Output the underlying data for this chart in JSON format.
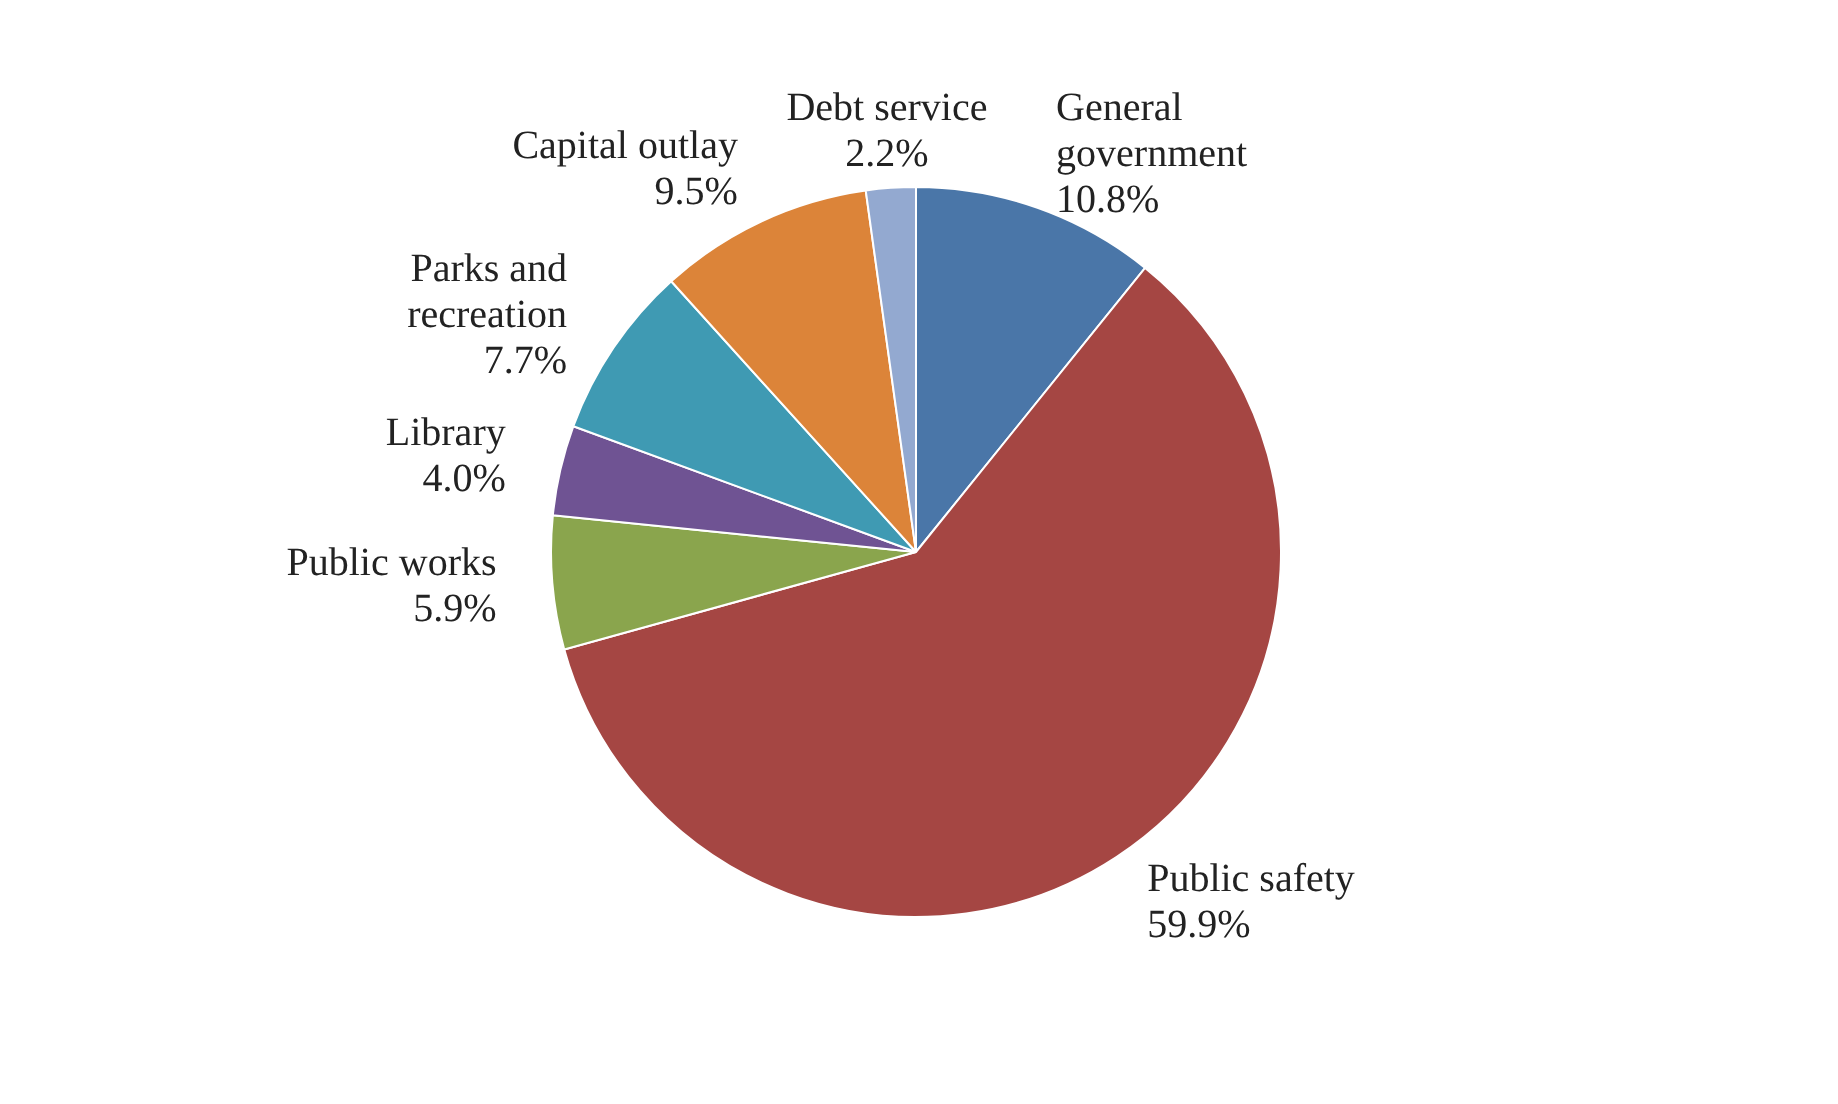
{
  "chart_data": {
    "type": "pie",
    "categories": [
      "General government",
      "Public safety",
      "Public works",
      "Library",
      "Parks and recreation",
      "Capital outlay",
      "Debt service"
    ],
    "values": [
      10.8,
      59.9,
      5.9,
      4.0,
      7.7,
      9.5,
      2.2
    ],
    "colors": [
      "#4a76a8",
      "#a54643",
      "#8aa54d",
      "#6f5393",
      "#3f9ab3",
      "#dc8439",
      "#93a9d0"
    ],
    "value_labels": [
      "10.8%",
      "59.9%",
      "5.9%",
      "4.0%",
      "7.7%",
      "9.5%",
      "2.2%"
    ],
    "legend": false
  }
}
